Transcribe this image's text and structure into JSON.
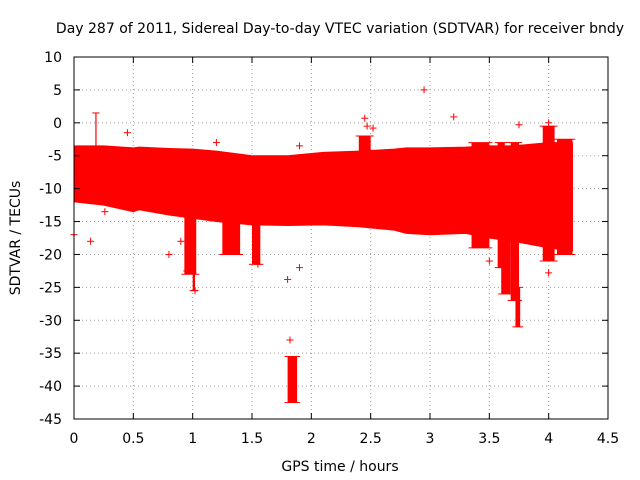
{
  "chart_data": {
    "type": "scatter",
    "title": "Day 287 of 2011, Sidereal Day-to-day VTEC variation (SDTVAR) for receiver bndy",
    "xlabel": "GPS time / hours",
    "ylabel": "SDTVAR / TECUs",
    "xlim": [
      0,
      4.5
    ],
    "ylim": [
      -45,
      10
    ],
    "xticks": [
      "0",
      "0.5",
      "1",
      "1.5",
      "2",
      "2.5",
      "3",
      "3.5",
      "4",
      "4.5"
    ],
    "xtick_values": [
      0,
      0.5,
      1,
      1.5,
      2,
      2.5,
      3,
      3.5,
      4,
      4.5
    ],
    "yticks": [
      "10",
      "5",
      "0",
      "-5",
      "-10",
      "-15",
      "-20",
      "-25",
      "-30",
      "-35",
      "-40",
      "-45"
    ],
    "ytick_values": [
      10,
      5,
      0,
      -5,
      -10,
      -15,
      -20,
      -25,
      -30,
      -35,
      -40,
      -45
    ],
    "grid": true,
    "series": [
      {
        "name": "SDTVAR",
        "color": "#ff0000",
        "marker": "plus",
        "error_bands": [
          {
            "x": 0.0,
            "low": -12.0,
            "high": -3.5
          },
          {
            "x": 0.25,
            "low": -12.5,
            "high": -3.5
          },
          {
            "x": 0.5,
            "low": -13.5,
            "high": -3.8
          },
          {
            "x": 0.55,
            "low": -13.2,
            "high": -3.7
          },
          {
            "x": 0.8,
            "low": -14.0,
            "high": -3.9
          },
          {
            "x": 1.0,
            "low": -14.5,
            "high": -4.0
          },
          {
            "x": 1.2,
            "low": -15.0,
            "high": -4.3
          },
          {
            "x": 1.5,
            "low": -15.5,
            "high": -5.0
          },
          {
            "x": 1.8,
            "low": -15.6,
            "high": -5.0
          },
          {
            "x": 2.1,
            "low": -15.5,
            "high": -4.5
          },
          {
            "x": 2.4,
            "low": -15.8,
            "high": -4.3
          },
          {
            "x": 2.7,
            "low": -16.3,
            "high": -4.0
          },
          {
            "x": 2.8,
            "low": -16.8,
            "high": -3.8
          },
          {
            "x": 3.0,
            "low": -17.0,
            "high": -3.8
          },
          {
            "x": 3.3,
            "low": -16.8,
            "high": -3.7
          },
          {
            "x": 3.5,
            "low": -17.5,
            "high": -3.5
          },
          {
            "x": 3.7,
            "low": -18.0,
            "high": -3.5
          },
          {
            "x": 4.0,
            "low": -19.0,
            "high": -3.0
          },
          {
            "x": 4.2,
            "low": -19.5,
            "high": -3.0
          }
        ],
        "excursions": [
          {
            "x0": 0.18,
            "x1": 0.19,
            "low": -4.0,
            "high": 1.5
          },
          {
            "x0": 0.93,
            "x1": 1.03,
            "low": -23.0,
            "high": -14.0
          },
          {
            "x0": 1.0,
            "x1": 1.02,
            "low": -25.5,
            "high": -14.0
          },
          {
            "x0": 1.25,
            "x1": 1.4,
            "low": -20.0,
            "high": -13.0
          },
          {
            "x0": 1.5,
            "x1": 1.57,
            "low": -21.5,
            "high": -14.0
          },
          {
            "x0": 1.8,
            "x1": 1.88,
            "low": -42.5,
            "high": -35.5
          },
          {
            "x0": 2.4,
            "x1": 2.5,
            "low": -6.0,
            "high": -2.0
          },
          {
            "x0": 3.35,
            "x1": 3.5,
            "low": -19.0,
            "high": -3.0
          },
          {
            "x0": 3.57,
            "x1": 3.63,
            "low": -22.0,
            "high": -3.0
          },
          {
            "x0": 3.6,
            "x1": 3.68,
            "low": -26.0,
            "high": -15.0
          },
          {
            "x0": 3.68,
            "x1": 3.75,
            "low": -27.0,
            "high": -3.0
          },
          {
            "x0": 3.72,
            "x1": 3.76,
            "low": -31.0,
            "high": -25.0
          },
          {
            "x0": 3.78,
            "x1": 3.85,
            "low": -18.0,
            "high": -3.5
          },
          {
            "x0": 3.95,
            "x1": 4.05,
            "low": -21.0,
            "high": -0.5
          },
          {
            "x0": 4.07,
            "x1": 4.2,
            "low": -20.0,
            "high": -2.5
          }
        ],
        "outliers": [
          {
            "x": 0.0,
            "y": -17.0
          },
          {
            "x": 0.14,
            "y": -18.0
          },
          {
            "x": 0.26,
            "y": -13.5
          },
          {
            "x": 0.45,
            "y": -1.5
          },
          {
            "x": 0.8,
            "y": -20.0
          },
          {
            "x": 0.9,
            "y": -18.0
          },
          {
            "x": 0.95,
            "y": -22.5
          },
          {
            "x": 1.02,
            "y": -25.5
          },
          {
            "x": 1.2,
            "y": -3.0
          },
          {
            "x": 1.55,
            "y": -21.5
          },
          {
            "x": 1.8,
            "y": -23.8
          },
          {
            "x": 1.82,
            "y": -33.0
          },
          {
            "x": 1.9,
            "y": -22.0
          },
          {
            "x": 1.9,
            "y": -3.5
          },
          {
            "x": 2.45,
            "y": 0.7
          },
          {
            "x": 2.47,
            "y": -0.5
          },
          {
            "x": 2.52,
            "y": -0.8
          },
          {
            "x": 2.95,
            "y": 5.0
          },
          {
            "x": 3.2,
            "y": 0.9
          },
          {
            "x": 3.5,
            "y": -21.0
          },
          {
            "x": 3.75,
            "y": -0.3
          },
          {
            "x": 4.0,
            "y": 0.0
          },
          {
            "x": 4.0,
            "y": -22.8
          }
        ]
      }
    ]
  }
}
